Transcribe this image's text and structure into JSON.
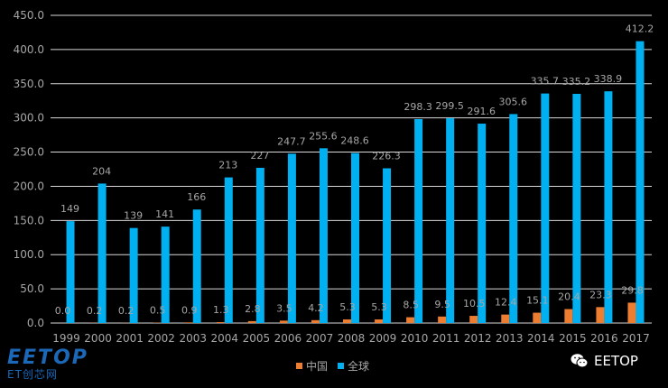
{
  "chart_data": {
    "type": "bar",
    "categories": [
      "1999",
      "2000",
      "2001",
      "2002",
      "2003",
      "2004",
      "2005",
      "2006",
      "2007",
      "2008",
      "2009",
      "2010",
      "2011",
      "2012",
      "2013",
      "2014",
      "2015",
      "2016",
      "2017"
    ],
    "series": [
      {
        "name": "中国",
        "color": "#ed7d31",
        "values": [
          0.0,
          0.2,
          0.2,
          0.5,
          0.9,
          1.3,
          2.8,
          3.5,
          4.2,
          5.3,
          5.3,
          8.5,
          9.5,
          10.5,
          12.4,
          15.1,
          20.4,
          23.3,
          29.8
        ],
        "labels": [
          "0.0",
          "0.2",
          "0.2",
          "0.5",
          "0.9",
          "1.3",
          "2.8",
          "3.5",
          "4.2",
          "5.3",
          "5.3",
          "8.5",
          "9.5",
          "10.5",
          "12.4",
          "15.1",
          "20.4",
          "23.3",
          "29.8"
        ]
      },
      {
        "name": "全球",
        "color": "#00b0f0",
        "values": [
          149,
          204,
          139,
          141,
          166,
          213,
          227,
          247.7,
          255.6,
          248.6,
          226.3,
          298.3,
          299.5,
          291.6,
          305.6,
          335.7,
          335.2,
          338.9,
          412.2
        ],
        "labels": [
          "149",
          "204",
          "139",
          "141",
          "166",
          "213",
          "227",
          "247.7",
          "255.6",
          "248.6",
          "226.3",
          "298.3",
          "299.5",
          "291.6",
          "305.6",
          "335.7",
          "335.2",
          "338.9",
          "412.2"
        ]
      }
    ],
    "yticks": [
      "0.0",
      "50.0",
      "100.0",
      "150.0",
      "200.0",
      "250.0",
      "300.0",
      "350.0",
      "400.0",
      "450.0"
    ],
    "ylim": [
      0,
      450
    ],
    "grid": true,
    "legend_position": "bottom"
  },
  "branding": {
    "logo_main": "EETOP",
    "logo_sub": "ET创芯网",
    "watermark": "EETOP",
    "watermark_icon": "wechat-icon"
  }
}
